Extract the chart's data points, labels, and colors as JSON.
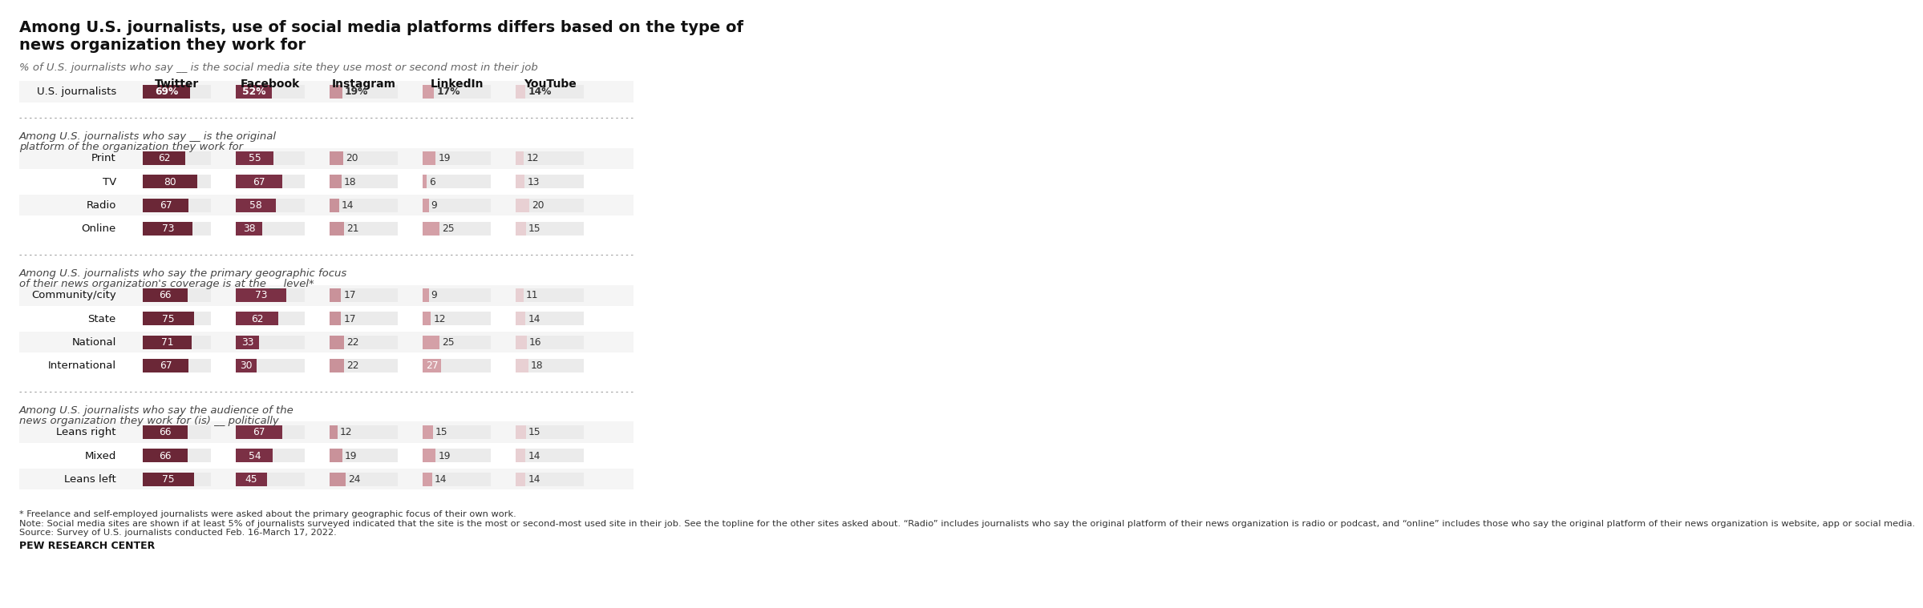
{
  "title": "Among U.S. journalists, use of social media platforms differs based on the type of\nnews organization they work for",
  "subtitle": "% of U.S. journalists who say __ is the social media site they use most or second most in their job",
  "columns": [
    "Twitter",
    "Facebook",
    "Instagram",
    "LinkedIn",
    "YouTube"
  ],
  "sections": [
    {
      "header": null,
      "rows": [
        {
          "label": "U.S. journalists",
          "values": [
            69,
            52,
            19,
            17,
            14
          ],
          "pct": true
        }
      ]
    },
    {
      "header": "Among U.S. journalists who say __ is the original\nplatform of the organization they work for",
      "rows": [
        {
          "label": "Print",
          "values": [
            62,
            55,
            20,
            19,
            12
          ],
          "pct": false
        },
        {
          "label": "TV",
          "values": [
            80,
            67,
            18,
            6,
            13
          ],
          "pct": false
        },
        {
          "label": "Radio",
          "values": [
            67,
            58,
            14,
            9,
            20
          ],
          "pct": false
        },
        {
          "label": "Online",
          "values": [
            73,
            38,
            21,
            25,
            15
          ],
          "pct": false
        }
      ]
    },
    {
      "header": "Among U.S. journalists who say the primary geographic focus\nof their news organization's coverage is at the __ level*",
      "rows": [
        {
          "label": "Community/city",
          "values": [
            66,
            73,
            17,
            9,
            11
          ],
          "pct": false
        },
        {
          "label": "State",
          "values": [
            75,
            62,
            17,
            12,
            14
          ],
          "pct": false
        },
        {
          "label": "National",
          "values": [
            71,
            33,
            22,
            25,
            16
          ],
          "pct": false
        },
        {
          "label": "International",
          "values": [
            67,
            30,
            22,
            27,
            18
          ],
          "pct": false
        }
      ]
    },
    {
      "header": "Among U.S. journalists who say the audience of the\nnews organization they work for (is) __ politically",
      "rows": [
        {
          "label": "Leans right",
          "values": [
            66,
            67,
            12,
            15,
            15
          ],
          "pct": false
        },
        {
          "label": "Mixed",
          "values": [
            66,
            54,
            19,
            19,
            14
          ],
          "pct": false
        },
        {
          "label": "Leans left",
          "values": [
            75,
            45,
            24,
            14,
            14
          ],
          "pct": false
        }
      ]
    }
  ],
  "colors": {
    "col0": "#6b2737",
    "col1": "#7b3045",
    "col2": "#c9929a",
    "col3": "#d4a0a7",
    "col4": "#e8d0d3",
    "bar_bg": "#ebebeb",
    "background": "#ffffff",
    "row_alt": "#f5f5f5"
  },
  "footnote1": "* Freelance and self-employed journalists were asked about the primary geographic focus of their own work.",
  "footnote2": "Note: Social media sites are shown if at least 5% of journalists surveyed indicated that the site is the most or second-most used site in their job. See the topline for the other sites asked about. “Radio” includes journalists who say the original platform of their news organization is radio or podcast, and “online” includes those who say the original platform of their news organization is website, app or social media.\nSource: Survey of U.S. journalists conducted Feb. 16-March 17, 2022.",
  "source_label": "PEW RESEARCH CENTER"
}
